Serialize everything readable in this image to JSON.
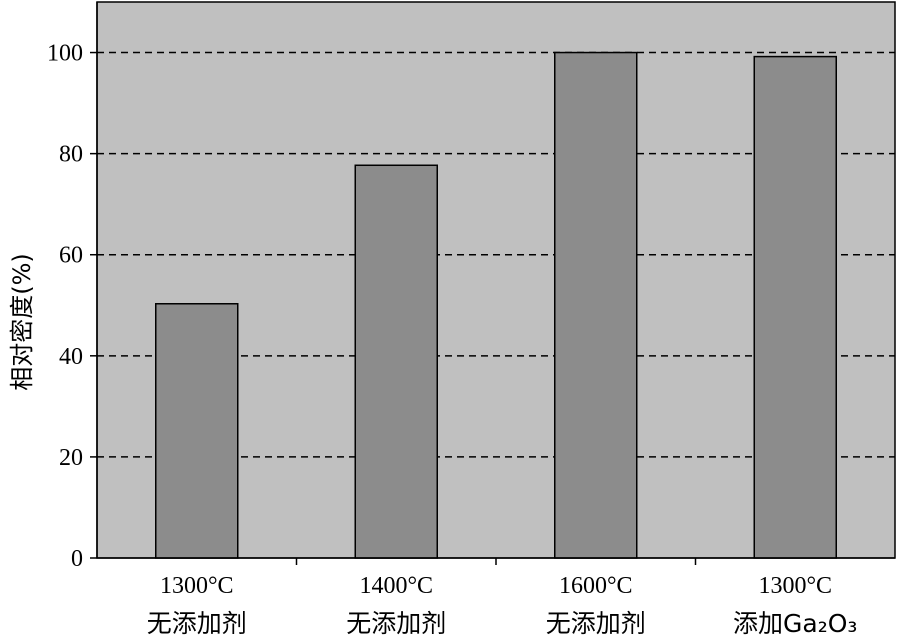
{
  "chart_data": {
    "type": "bar",
    "categories": [
      {
        "line1": "1300°C",
        "line2": "无添加剂"
      },
      {
        "line1": "1400°C",
        "line2": "无添加剂"
      },
      {
        "line1": "1600°C",
        "line2": "无添加剂"
      },
      {
        "line1": "1300°C",
        "line2": "添加Ga₂O₃"
      }
    ],
    "values": [
      50.3,
      77.7,
      100,
      99.2
    ],
    "ylabel": "相对密度(%)",
    "ylim": [
      0,
      110
    ],
    "yticks": [
      0,
      20,
      40,
      60,
      80,
      100
    ],
    "grid": true,
    "colors": {
      "plot_bg": "#c0c0c0",
      "bar_fill": "#8c8c8c",
      "bar_stroke": "#000000",
      "grid": "#000000"
    }
  }
}
